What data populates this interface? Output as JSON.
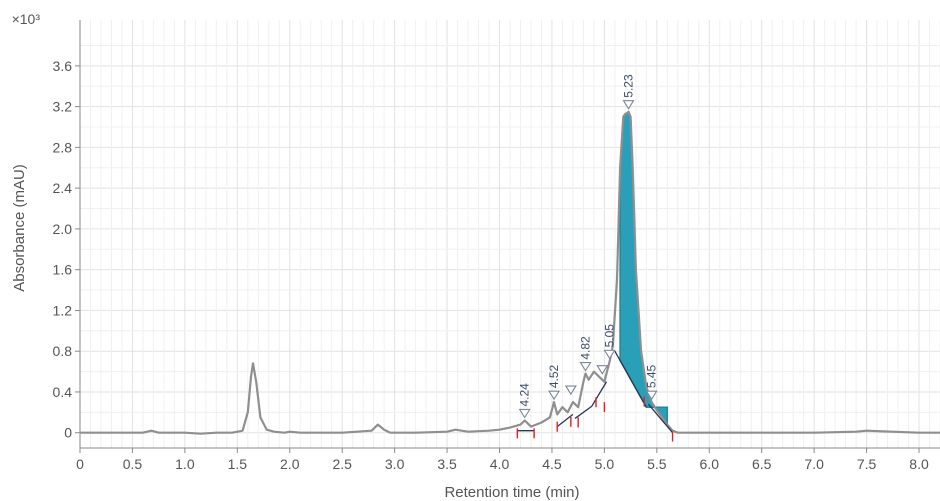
{
  "chart_data": {
    "type": "line",
    "title": "",
    "xlabel": "Retention time (min)",
    "ylabel": "Absorbance (mAU)",
    "y_multiplier_label": "×10³",
    "xlim": [
      0,
      8.2
    ],
    "ylim": [
      -0.15,
      4.05
    ],
    "x_ticks": [
      0,
      0.5,
      1.0,
      1.5,
      2.0,
      2.5,
      3.0,
      3.5,
      4.0,
      4.5,
      5.0,
      5.5,
      6.0,
      6.5,
      7.0,
      7.5,
      8.0
    ],
    "x_tick_labels": [
      "0",
      "0.5",
      "1.0",
      "1.5",
      "2.0",
      "2.5",
      "3.0",
      "3.5",
      "4.0",
      "4.5",
      "5.0",
      "5.5",
      "6.0",
      "6.5",
      "7.0",
      "7.5",
      "8.0"
    ],
    "y_ticks": [
      0,
      0.4,
      0.8,
      1.2,
      1.6,
      2.0,
      2.4,
      2.8,
      3.2,
      3.6
    ],
    "y_tick_labels": [
      "0",
      "0.4",
      "0.8",
      "1.2",
      "1.6",
      "2.0",
      "2.4",
      "2.8",
      "3.2",
      "3.6"
    ],
    "grid": true,
    "colors": {
      "trace": "#8f8f8f",
      "fill": "#1f9bb5",
      "fill_edge": "#1a7f98",
      "baseline": "#27355e",
      "marker": "#e02020",
      "label": "#3a4a6b"
    },
    "series": [
      {
        "x": [
          0,
          0.3,
          0.6,
          0.68,
          0.75,
          1.0,
          1.15,
          1.3,
          1.45,
          1.55,
          1.6,
          1.63,
          1.65,
          1.68,
          1.72,
          1.78,
          1.85,
          1.95,
          2.0,
          2.1,
          2.5,
          2.78,
          2.84,
          2.9,
          2.96,
          3.2,
          3.5,
          3.58,
          3.7,
          3.9,
          4.0,
          4.1,
          4.2,
          4.24,
          4.3,
          4.4,
          4.48,
          4.52,
          4.55,
          4.6,
          4.65,
          4.7,
          4.75,
          4.8,
          4.82,
          4.85,
          4.9,
          4.95,
          5.0,
          5.05,
          5.08,
          5.12,
          5.15,
          5.18,
          5.2,
          5.22,
          5.23,
          5.25,
          5.27,
          5.3,
          5.35,
          5.4,
          5.45,
          5.5,
          5.55,
          5.6,
          5.65,
          5.7,
          6.0,
          7.0,
          7.4,
          7.5,
          8.0,
          8.2
        ],
        "y": [
          0,
          0,
          0,
          0.02,
          0,
          0,
          -0.01,
          0,
          0,
          0.02,
          0.2,
          0.55,
          0.68,
          0.5,
          0.15,
          0.03,
          0.01,
          0,
          0.01,
          0,
          0,
          0.02,
          0.08,
          0.03,
          0,
          0,
          0.01,
          0.03,
          0.01,
          0.02,
          0.03,
          0.05,
          0.08,
          0.12,
          0.06,
          0.1,
          0.15,
          0.3,
          0.18,
          0.25,
          0.2,
          0.3,
          0.25,
          0.5,
          0.58,
          0.52,
          0.6,
          0.55,
          0.5,
          0.7,
          0.85,
          1.5,
          2.6,
          3.1,
          3.13,
          3.14,
          3.15,
          3.1,
          2.6,
          1.6,
          0.8,
          0.45,
          0.3,
          0.22,
          0.15,
          0.08,
          0.02,
          0,
          0,
          0,
          0.01,
          0.02,
          0,
          0
        ]
      }
    ],
    "peak_labels": [
      {
        "x": 4.24,
        "y": 0.12,
        "label": "4.24"
      },
      {
        "x": 4.52,
        "y": 0.3,
        "label": "4.52"
      },
      {
        "x": 4.82,
        "y": 0.58,
        "label": "4.82"
      },
      {
        "x": 5.05,
        "y": 0.7,
        "label": "5.05"
      },
      {
        "x": 5.23,
        "y": 3.15,
        "label": "5.23"
      },
      {
        "x": 5.45,
        "y": 0.3,
        "label": "5.45"
      }
    ],
    "extra_markers": [
      {
        "x": 4.68,
        "y": 0.35
      },
      {
        "x": 4.98,
        "y": 0.55
      }
    ],
    "fill_region": [
      5.15,
      5.6
    ],
    "baseline_segments": [
      [
        [
          4.17,
          0.02
        ],
        [
          4.33,
          0.02
        ]
      ],
      [
        [
          4.55,
          0.06
        ],
        [
          4.7,
          0.18
        ]
      ],
      [
        [
          4.72,
          0.14
        ],
        [
          4.88,
          0.26
        ]
      ],
      [
        [
          4.88,
          0.26
        ],
        [
          5.02,
          0.5
        ]
      ],
      [
        [
          5.1,
          0.8
        ],
        [
          5.4,
          0.25
        ]
      ],
      [
        [
          5.42,
          0.28
        ],
        [
          5.65,
          0.0
        ]
      ]
    ],
    "integration_marks": [
      4.17,
      4.33,
      4.55,
      4.68,
      4.75,
      4.92,
      5.0,
      5.38,
      5.65
    ]
  }
}
